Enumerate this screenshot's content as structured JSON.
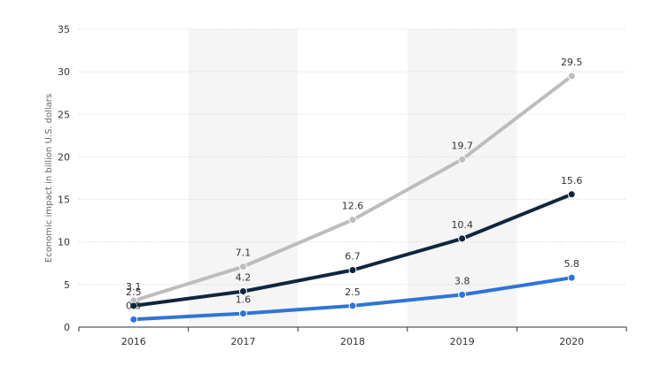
{
  "chart_data": {
    "type": "line",
    "title": "",
    "xlabel": "",
    "ylabel": "Economic impact in billion U.S. dollars",
    "categories": [
      "2016",
      "2017",
      "2018",
      "2019",
      "2020"
    ],
    "ylim": [
      0,
      35
    ],
    "yticks": [
      0,
      5,
      10,
      15,
      20,
      25,
      30,
      35
    ],
    "grid": true,
    "shaded_bands": [
      "2017",
      "2019"
    ],
    "legend": "none",
    "series": [
      {
        "color": "#bdbdbd",
        "values": [
          3.1,
          7.1,
          12.6,
          19.7,
          29.5
        ]
      },
      {
        "color": "#0f2640",
        "values": [
          2.5,
          4.2,
          6.7,
          10.4,
          15.6
        ]
      },
      {
        "color": "#2f74d6",
        "values": [
          0.9,
          1.6,
          2.5,
          3.8,
          5.8
        ]
      }
    ]
  }
}
